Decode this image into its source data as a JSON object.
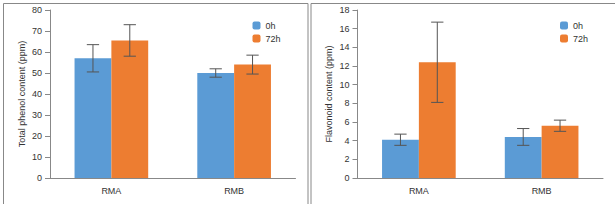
{
  "chart_data": [
    {
      "type": "bar",
      "y_label": "Total phenol content (ppm)",
      "categories": [
        "RMA",
        "RMB"
      ],
      "series": [
        {
          "name": "0h",
          "color": "#5b9bd5",
          "values": [
            57,
            50
          ],
          "errors": [
            6.5,
            2
          ]
        },
        {
          "name": "72h",
          "color": "#ed7d31",
          "values": [
            65.5,
            54
          ],
          "errors": [
            7.5,
            4.5
          ]
        }
      ],
      "ylim": [
        0,
        80
      ],
      "yticks": [
        0,
        10,
        20,
        30,
        40,
        50,
        60,
        70,
        80
      ],
      "grid": false,
      "legend": "upper right"
    },
    {
      "type": "bar",
      "y_label": "Flavonoid content (ppm)",
      "categories": [
        "RMA",
        "RMB"
      ],
      "series": [
        {
          "name": "0h",
          "color": "#5b9bd5",
          "values": [
            4.1,
            4.4
          ],
          "errors": [
            0.6,
            0.9
          ]
        },
        {
          "name": "72h",
          "color": "#ed7d31",
          "values": [
            12.4,
            5.6
          ],
          "errors": [
            4.3,
            0.6
          ]
        }
      ],
      "ylim": [
        0,
        18
      ],
      "yticks": [
        0,
        2,
        4,
        6,
        8,
        10,
        12,
        14,
        16,
        18
      ],
      "grid": false,
      "legend": "upper right"
    }
  ]
}
